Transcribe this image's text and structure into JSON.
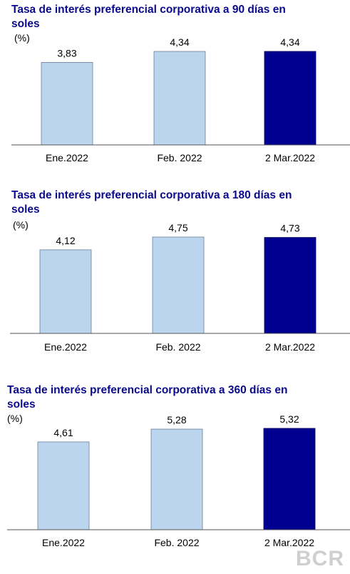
{
  "colors": {
    "title": "#0a0a8c",
    "bar_past": "#bcd5ee",
    "bar_current": "#000090",
    "axis": "#555555"
  },
  "watermark": "BCR",
  "chart_data": [
    {
      "type": "bar",
      "title_line1": "Tasa de interés preferencial corporativa a 90 días en",
      "title_line2": "soles",
      "unit": "(%)",
      "categories": [
        "Ene.2022",
        "Feb. 2022",
        "2 Mar.2022"
      ],
      "values": [
        3.83,
        4.34,
        4.34
      ],
      "labels": [
        "3,83",
        "4,34",
        "4,34"
      ],
      "highlight_index": 2,
      "ylim": [
        0,
        4.34
      ]
    },
    {
      "type": "bar",
      "title_line1": "Tasa de interés preferencial corporativa a 180 días en",
      "title_line2": "soles",
      "unit": "(%)",
      "categories": [
        "Ene.2022",
        "Feb. 2022",
        "2 Mar.2022"
      ],
      "values": [
        4.12,
        4.75,
        4.73
      ],
      "labels": [
        "4,12",
        "4,75",
        "4,73"
      ],
      "highlight_index": 2,
      "ylim": [
        0,
        4.75
      ]
    },
    {
      "type": "bar",
      "title_line1": "Tasa de interés preferencial corporativa a 360 días en",
      "title_line2": "soles",
      "unit": "(%)",
      "categories": [
        "Ene.2022",
        "Feb. 2022",
        "2 Mar.2022"
      ],
      "values": [
        4.61,
        5.28,
        5.32
      ],
      "labels": [
        "4,61",
        "5,28",
        "5,32"
      ],
      "highlight_index": 2,
      "ylim": [
        0,
        5.32
      ]
    }
  ]
}
